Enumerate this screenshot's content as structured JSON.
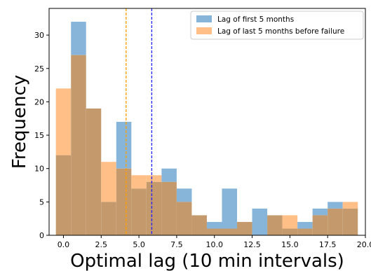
{
  "chart_data": {
    "type": "histogram",
    "xlabel": "Optimal lag (10 min intervals)",
    "ylabel": "Frequency",
    "xlim": [
      -0.95,
      20.0
    ],
    "ylim": [
      0,
      34
    ],
    "xticks": [
      0.0,
      2.5,
      5.0,
      7.5,
      10.0,
      12.5,
      15.0,
      17.5,
      20.0
    ],
    "xtick_labels": [
      "0.0",
      "2.5",
      "5.0",
      "7.5",
      "10.0",
      "12.5",
      "15.0",
      "17.5",
      "20.0"
    ],
    "yticks": [
      0,
      5,
      10,
      15,
      20,
      25,
      30
    ],
    "ytick_labels": [
      "0",
      "5",
      "10",
      "15",
      "20",
      "25",
      "30"
    ],
    "bin_edges": [
      -0.5,
      0.5,
      1.5,
      2.5,
      3.5,
      4.5,
      5.5,
      6.5,
      7.5,
      8.5,
      9.5,
      10.5,
      11.5,
      12.5,
      13.5,
      14.5,
      15.5,
      16.5,
      17.5,
      18.5,
      19.5
    ],
    "legend_position": "top-right",
    "series": [
      {
        "name": "Lag of first 5 months",
        "color": "#1f77b4",
        "fill": "#87b5d9",
        "values": [
          12,
          32,
          19,
          5,
          17,
          7,
          8,
          10,
          7,
          3,
          2,
          7,
          2,
          4,
          3,
          1,
          2,
          4,
          5,
          4
        ]
      },
      {
        "name": "Lag of last 5 months before failure",
        "color": "#ff7f0e",
        "fill": "#ffbf86",
        "values": [
          22,
          27,
          19,
          11,
          10,
          9,
          9,
          8,
          5,
          3,
          1,
          1,
          2,
          0,
          3,
          3,
          1,
          3,
          4,
          5
        ]
      }
    ],
    "overlap_fill": "#c49a6c",
    "vlines": [
      {
        "x": 4.15,
        "color": "#ff9f00",
        "style": "dashed"
      },
      {
        "x": 5.85,
        "color": "#2020ff",
        "style": "dashed"
      }
    ]
  }
}
